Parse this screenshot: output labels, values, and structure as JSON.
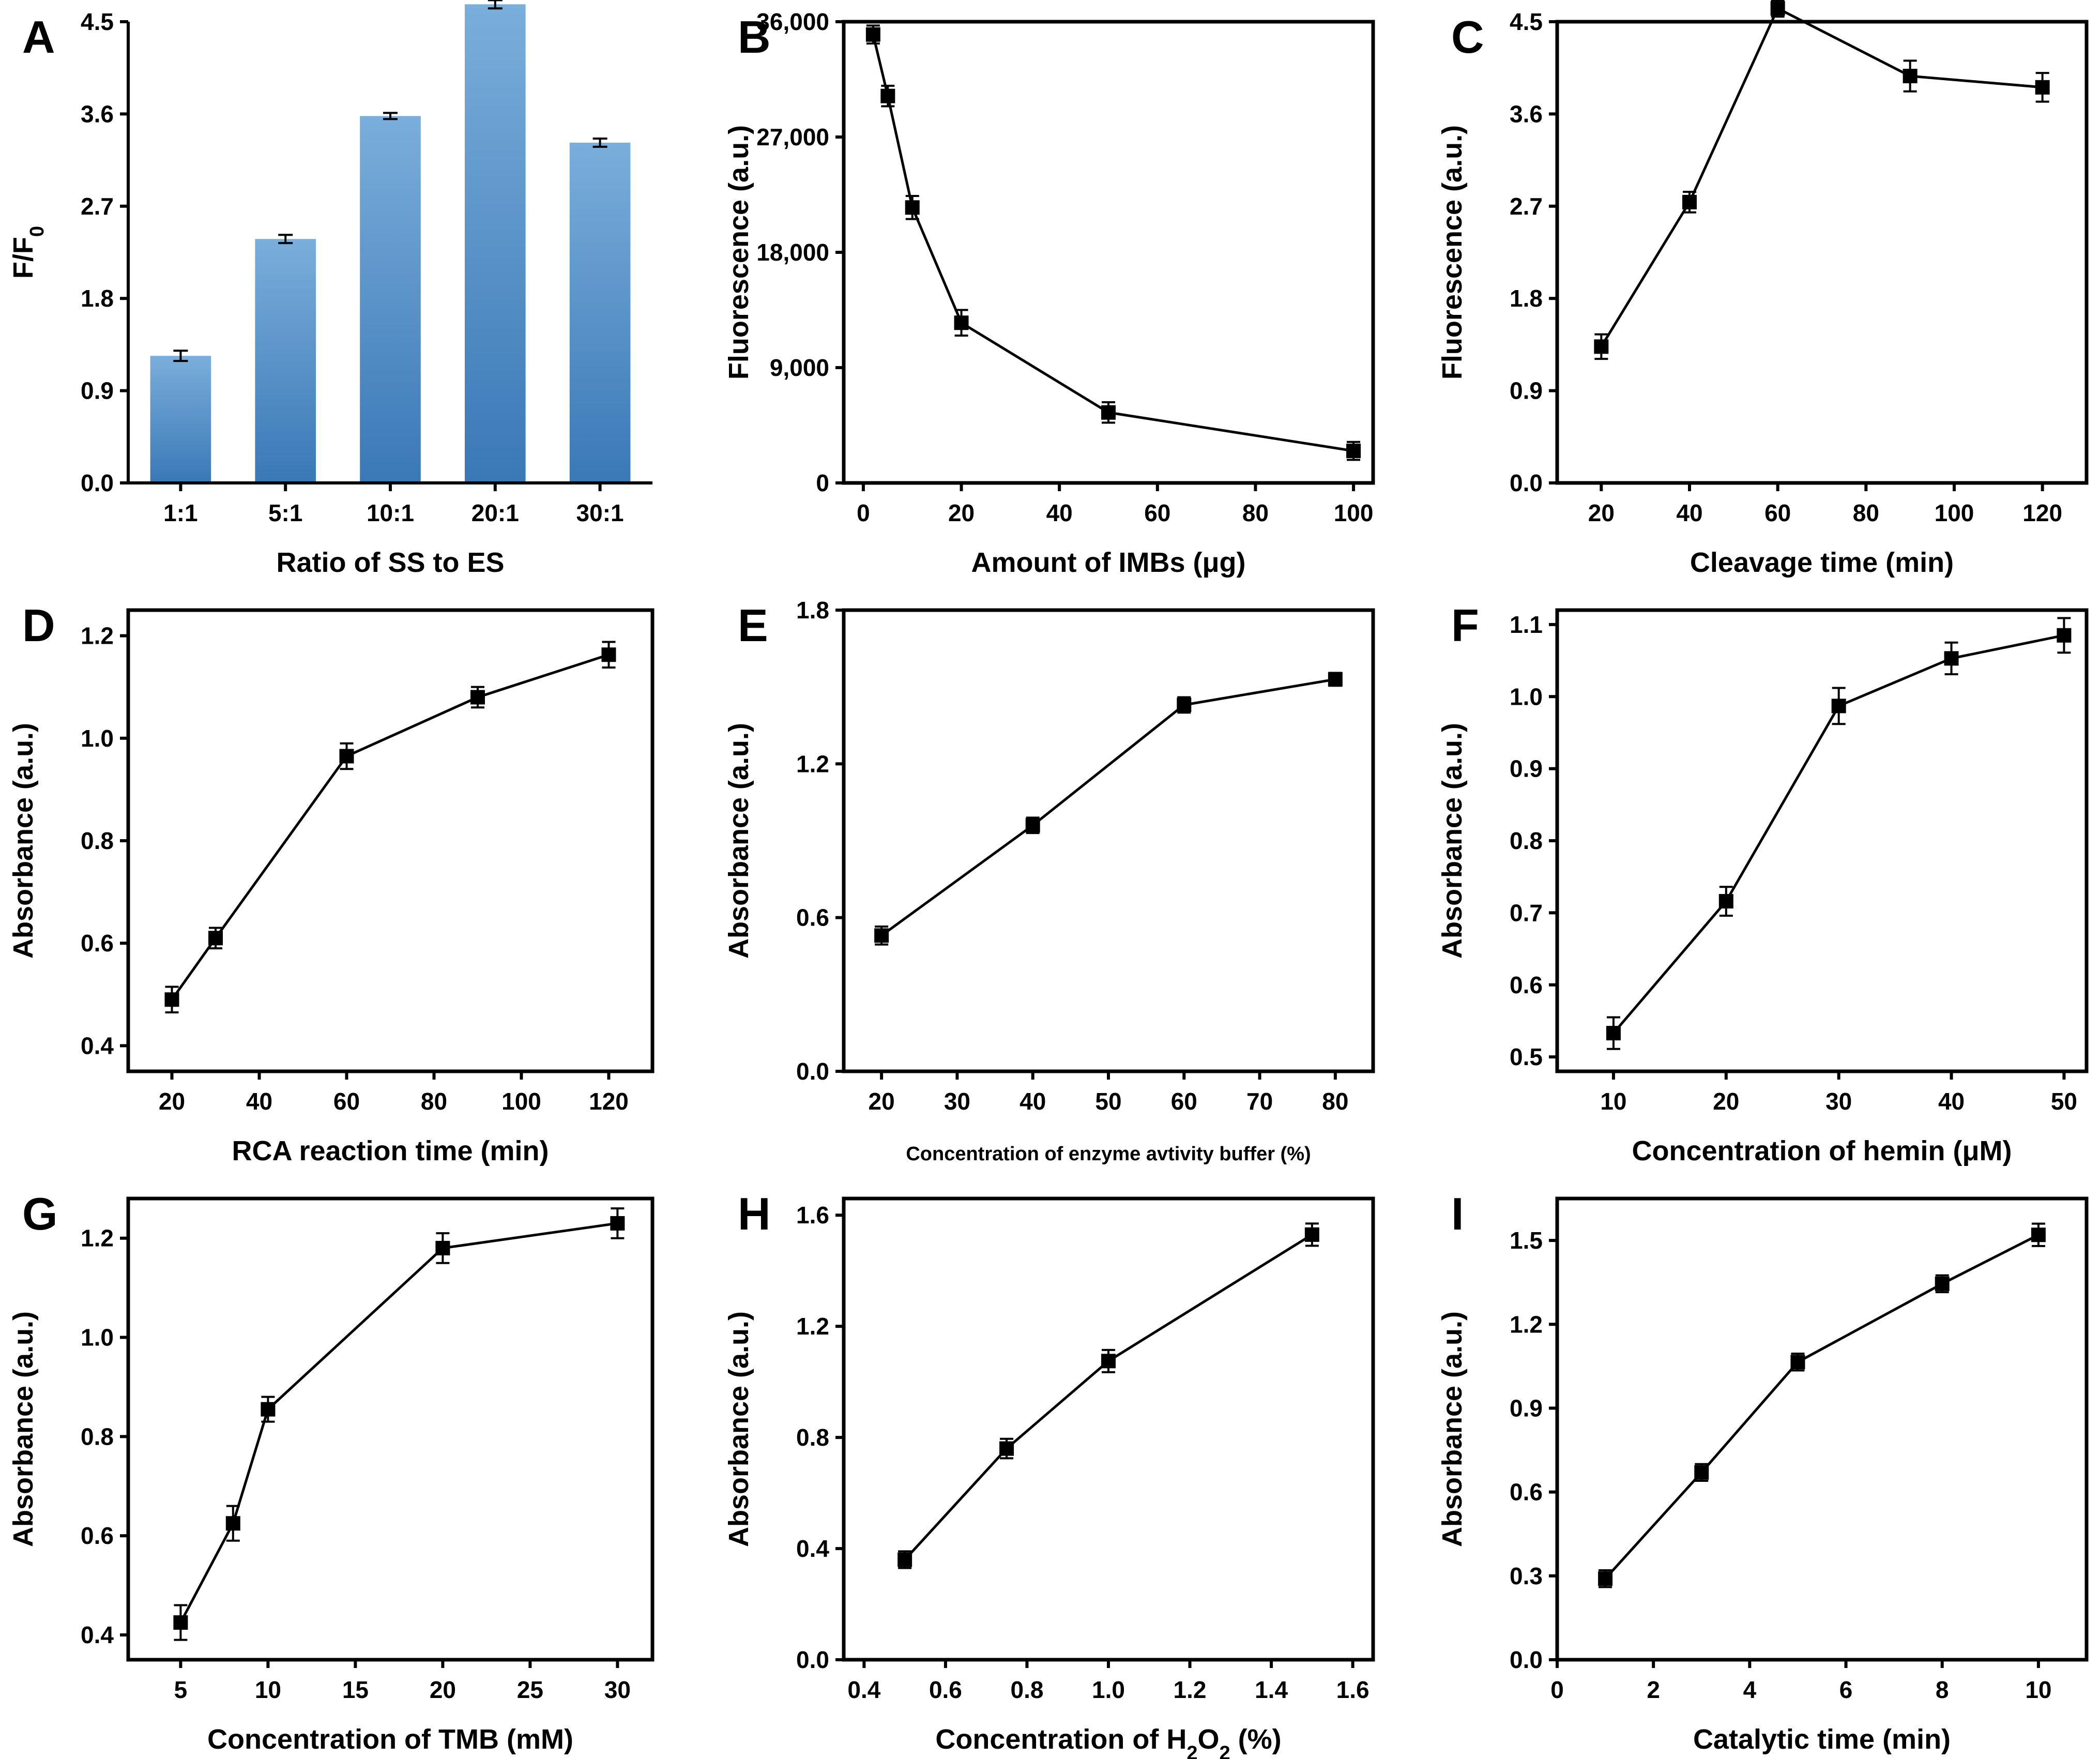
{
  "chart_data": [
    {
      "panel": "A",
      "type": "bar",
      "categories": [
        "1:1",
        "5:1",
        "10:1",
        "20:1",
        "30:1"
      ],
      "values": [
        1.24,
        2.38,
        3.58,
        4.67,
        3.32
      ],
      "errors": [
        0.05,
        0.04,
        0.03,
        0.04,
        0.04
      ],
      "xlabel": "Ratio of SS to ES",
      "ylabel": "F/F",
      "ylabel_sub": "0",
      "ylim": [
        0,
        4.5
      ],
      "yticks": [
        0.0,
        0.9,
        1.8,
        2.7,
        3.6,
        4.5
      ],
      "ytick_labels": [
        "0.0",
        "0.9",
        "1.8",
        "2.7",
        "3.6",
        "4.5"
      ],
      "color_top": "#7aaedb",
      "color_bottom": "#3a78b6"
    },
    {
      "panel": "B",
      "type": "line",
      "x": [
        2,
        5,
        10,
        20,
        50,
        100
      ],
      "y": [
        35000,
        30200,
        21500,
        12500,
        5500,
        2500
      ],
      "errors": [
        700,
        800,
        900,
        1000,
        800,
        700
      ],
      "xlabel": "Amount of IMBs (μg)",
      "ylabel": "Fluorescence (a.u.)",
      "xlim": [
        -4,
        104
      ],
      "ylim": [
        0,
        36000
      ],
      "xticks": [
        0,
        20,
        40,
        60,
        80,
        100
      ],
      "xtick_labels": [
        "0",
        "20",
        "40",
        "60",
        "80",
        "100"
      ],
      "yticks": [
        0,
        9000,
        18000,
        27000,
        36000
      ],
      "ytick_labels": [
        "0",
        "9,000",
        "18,000",
        "27,000",
        "36,000"
      ]
    },
    {
      "panel": "C",
      "type": "line",
      "x": [
        20,
        40,
        60,
        90,
        120
      ],
      "y": [
        1.33,
        2.74,
        4.63,
        3.97,
        3.86
      ],
      "errors": [
        0.12,
        0.1,
        0.08,
        0.15,
        0.14
      ],
      "xlabel": "Cleavage time (min)",
      "ylabel": "Fluorescence (a.u.)",
      "xlim": [
        10,
        130
      ],
      "ylim": [
        0,
        4.5
      ],
      "xticks": [
        20,
        40,
        60,
        80,
        100,
        120
      ],
      "xtick_labels": [
        "20",
        "40",
        "60",
        "80",
        "100",
        "120"
      ],
      "yticks": [
        0.0,
        0.9,
        1.8,
        2.7,
        3.6,
        4.5
      ],
      "ytick_labels": [
        "0.0",
        "0.9",
        "1.8",
        "2.7",
        "3.6",
        "4.5"
      ]
    },
    {
      "panel": "D",
      "type": "line",
      "x": [
        20,
        30,
        60,
        90,
        120
      ],
      "y": [
        0.49,
        0.61,
        0.965,
        1.08,
        1.163
      ],
      "errors": [
        0.025,
        0.02,
        0.025,
        0.02,
        0.025
      ],
      "xlabel": "RCA reaction time (min)",
      "ylabel": "Absorbance (a.u.)",
      "xlim": [
        10,
        130
      ],
      "ylim": [
        0.35,
        1.25
      ],
      "xticks": [
        20,
        40,
        60,
        80,
        100,
        120
      ],
      "xtick_labels": [
        "20",
        "40",
        "60",
        "80",
        "100",
        "120"
      ],
      "yticks": [
        0.4,
        0.6,
        0.8,
        1.0,
        1.2
      ],
      "ytick_labels": [
        "0.4",
        "0.6",
        "0.8",
        "1.0",
        "1.2"
      ]
    },
    {
      "panel": "E",
      "type": "line",
      "x": [
        20,
        40,
        60,
        80
      ],
      "y": [
        0.53,
        0.96,
        1.43,
        1.53
      ],
      "errors": [
        0.035,
        0.03,
        0.03,
        0.025
      ],
      "xlabel": "Concentration of enzyme avtivity buffer (%)",
      "ylabel": "Absorbance (a.u.)",
      "xlim": [
        15,
        85
      ],
      "ylim": [
        0,
        1.8
      ],
      "xticks": [
        20,
        30,
        40,
        50,
        60,
        70,
        80
      ],
      "xtick_labels": [
        "20",
        "30",
        "40",
        "50",
        "60",
        "70",
        "80"
      ],
      "yticks": [
        0.0,
        0.6,
        1.2,
        1.8
      ],
      "ytick_labels": [
        "0.0",
        "0.6",
        "1.2",
        "1.8"
      ]
    },
    {
      "panel": "F",
      "type": "line",
      "x": [
        10,
        20,
        30,
        40,
        50
      ],
      "y": [
        0.533,
        0.716,
        0.987,
        1.053,
        1.085
      ],
      "errors": [
        0.022,
        0.02,
        0.025,
        0.022,
        0.024
      ],
      "xlabel": "Concentration of hemin (μM)",
      "ylabel": "Absorbance (a.u.)",
      "xlim": [
        5,
        52
      ],
      "ylim": [
        0.48,
        1.12
      ],
      "xticks": [
        10,
        20,
        30,
        40,
        50
      ],
      "xtick_labels": [
        "10",
        "20",
        "30",
        "40",
        "50"
      ],
      "yticks": [
        0.5,
        0.6,
        0.7,
        0.8,
        0.9,
        1.0,
        1.1
      ],
      "ytick_labels": [
        "0.5",
        "0.6",
        "0.7",
        "0.8",
        "0.9",
        "1.0",
        "1.1"
      ]
    },
    {
      "panel": "G",
      "type": "line",
      "x": [
        5,
        8,
        10,
        20,
        30
      ],
      "y": [
        0.425,
        0.625,
        0.855,
        1.18,
        1.23
      ],
      "errors": [
        0.035,
        0.035,
        0.025,
        0.03,
        0.03
      ],
      "xlabel": "Concentration of TMB (mM)",
      "ylabel": "Absorbance (a.u.)",
      "xlim": [
        2,
        32
      ],
      "ylim": [
        0.35,
        1.28
      ],
      "xticks": [
        5,
        10,
        15,
        20,
        25,
        30
      ],
      "xtick_labels": [
        "5",
        "10",
        "15",
        "20",
        "25",
        "30"
      ],
      "yticks": [
        0.4,
        0.6,
        0.8,
        1.0,
        1.2
      ],
      "ytick_labels": [
        "0.4",
        "0.6",
        "0.8",
        "1.0",
        "1.2"
      ]
    },
    {
      "panel": "H",
      "type": "line",
      "x": [
        0.5,
        0.75,
        1.0,
        1.5
      ],
      "y": [
        0.36,
        0.76,
        1.075,
        1.53
      ],
      "errors": [
        0.03,
        0.035,
        0.04,
        0.04
      ],
      "xlabel": "Concentration of H",
      "xlabel_sub": "2",
      "xlabel_mid": "O",
      "xlabel_sub2": "2",
      "xlabel_end": " (%)",
      "ylabel": "Absorbance (a.u.)",
      "xlim": [
        0.35,
        1.65
      ],
      "ylim": [
        0,
        1.66
      ],
      "xticks": [
        0.4,
        0.6,
        0.8,
        1.0,
        1.2,
        1.4,
        1.6
      ],
      "xtick_labels": [
        "0.4",
        "0.6",
        "0.8",
        "1.0",
        "1.2",
        "1.4",
        "1.6"
      ],
      "yticks": [
        0.0,
        0.4,
        0.8,
        1.2,
        1.6
      ],
      "ytick_labels": [
        "0.0",
        "0.4",
        "0.8",
        "1.2",
        "1.6"
      ]
    },
    {
      "panel": "I",
      "type": "line",
      "x": [
        1,
        3,
        5,
        8,
        10
      ],
      "y": [
        0.29,
        0.67,
        1.065,
        1.345,
        1.52
      ],
      "errors": [
        0.03,
        0.03,
        0.03,
        0.03,
        0.04
      ],
      "xlabel": "Catalytic time (min)",
      "ylabel": "Absorbance (a.u.)",
      "xlim": [
        0,
        11
      ],
      "ylim": [
        0,
        1.65
      ],
      "xticks": [
        0,
        2,
        4,
        6,
        8,
        10
      ],
      "xtick_labels": [
        "0",
        "2",
        "4",
        "6",
        "8",
        "10"
      ],
      "yticks": [
        0.0,
        0.3,
        0.6,
        0.9,
        1.2,
        1.5
      ],
      "ytick_labels": [
        "0.0",
        "0.3",
        "0.6",
        "0.9",
        "1.2",
        "1.5"
      ]
    }
  ]
}
